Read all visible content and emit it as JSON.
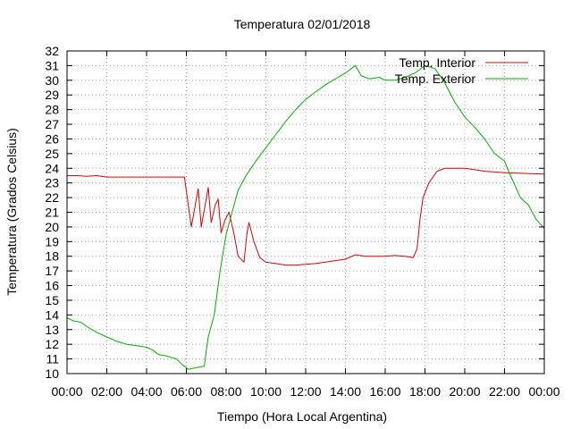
{
  "chart_data": {
    "type": "line",
    "title": "Temperatura 02/01/2018",
    "xlabel": "Tiempo (Hora Local Argentina)",
    "ylabel": "Temperatura (Grados Celsius)",
    "xlim": [
      0,
      24
    ],
    "ylim": [
      10,
      32
    ],
    "xticks": [
      0,
      2,
      4,
      6,
      8,
      10,
      12,
      14,
      16,
      18,
      20,
      22,
      24
    ],
    "xtick_labels": [
      "00:00",
      "02:00",
      "04:00",
      "06:00",
      "08:00",
      "10:00",
      "12:00",
      "14:00",
      "16:00",
      "18:00",
      "20:00",
      "22:00",
      "00:00"
    ],
    "yticks": [
      10,
      11,
      12,
      13,
      14,
      15,
      16,
      17,
      18,
      19,
      20,
      21,
      22,
      23,
      24,
      25,
      26,
      27,
      28,
      29,
      30,
      31,
      32
    ],
    "grid": true,
    "legend_position": "top-right",
    "series": [
      {
        "name": "Temp. Interior",
        "color": "#e00000",
        "points": [
          [
            0,
            23.5
          ],
          [
            0.5,
            23.5
          ],
          [
            1,
            23.45
          ],
          [
            1.5,
            23.5
          ],
          [
            2,
            23.4
          ],
          [
            3,
            23.4
          ],
          [
            4,
            23.4
          ],
          [
            5,
            23.4
          ],
          [
            5.9,
            23.4
          ],
          [
            6.1,
            21.5
          ],
          [
            6.25,
            20.0
          ],
          [
            6.45,
            21.5
          ],
          [
            6.6,
            22.6
          ],
          [
            6.75,
            20.0
          ],
          [
            6.95,
            21.5
          ],
          [
            7.1,
            22.7
          ],
          [
            7.25,
            20.3
          ],
          [
            7.45,
            21.5
          ],
          [
            7.6,
            21.9
          ],
          [
            7.75,
            19.6
          ],
          [
            7.95,
            20.5
          ],
          [
            8.15,
            21.0
          ],
          [
            8.4,
            19.5
          ],
          [
            8.6,
            18.0
          ],
          [
            8.9,
            17.6
          ],
          [
            9.05,
            19.6
          ],
          [
            9.15,
            20.3
          ],
          [
            9.4,
            19.0
          ],
          [
            9.7,
            17.9
          ],
          [
            10,
            17.6
          ],
          [
            10.5,
            17.5
          ],
          [
            11,
            17.4
          ],
          [
            11.5,
            17.4
          ],
          [
            12,
            17.45
          ],
          [
            12.5,
            17.5
          ],
          [
            13,
            17.6
          ],
          [
            13.5,
            17.7
          ],
          [
            14,
            17.8
          ],
          [
            14.5,
            18.1
          ],
          [
            15,
            18.0
          ],
          [
            15.5,
            18.0
          ],
          [
            16,
            18.0
          ],
          [
            16.5,
            18.05
          ],
          [
            17,
            18.0
          ],
          [
            17.4,
            17.9
          ],
          [
            17.6,
            18.5
          ],
          [
            17.75,
            20.5
          ],
          [
            17.9,
            22.0
          ],
          [
            18.2,
            23.0
          ],
          [
            18.6,
            23.8
          ],
          [
            19,
            24.0
          ],
          [
            19.5,
            24.0
          ],
          [
            20,
            24.0
          ],
          [
            20.5,
            23.9
          ],
          [
            21,
            23.8
          ],
          [
            21.5,
            23.75
          ],
          [
            22,
            23.7
          ],
          [
            23,
            23.65
          ],
          [
            24,
            23.6
          ]
        ]
      },
      {
        "name": "Temp. Exterior",
        "color": "#00b000",
        "points": [
          [
            0,
            13.8
          ],
          [
            0.3,
            13.6
          ],
          [
            0.7,
            13.5
          ],
          [
            1,
            13.2
          ],
          [
            1.5,
            12.8
          ],
          [
            2,
            12.5
          ],
          [
            2.5,
            12.2
          ],
          [
            3,
            12.0
          ],
          [
            3.5,
            11.9
          ],
          [
            4,
            11.8
          ],
          [
            4.3,
            11.6
          ],
          [
            4.6,
            11.3
          ],
          [
            5,
            11.2
          ],
          [
            5.5,
            11.0
          ],
          [
            5.8,
            10.6
          ],
          [
            6.1,
            10.3
          ],
          [
            6.5,
            10.4
          ],
          [
            6.9,
            10.5
          ],
          [
            7.1,
            12.5
          ],
          [
            7.4,
            14.0
          ],
          [
            7.7,
            17.0
          ],
          [
            8,
            19.5
          ],
          [
            8.3,
            21.0
          ],
          [
            8.6,
            22.5
          ],
          [
            9,
            23.5
          ],
          [
            9.5,
            24.5
          ],
          [
            10,
            25.4
          ],
          [
            10.5,
            26.3
          ],
          [
            11,
            27.2
          ],
          [
            11.5,
            28.0
          ],
          [
            12,
            28.7
          ],
          [
            12.5,
            29.2
          ],
          [
            13,
            29.7
          ],
          [
            13.5,
            30.1
          ],
          [
            14,
            30.5
          ],
          [
            14.3,
            30.8
          ],
          [
            14.5,
            31.0
          ],
          [
            14.8,
            30.3
          ],
          [
            15.2,
            30.1
          ],
          [
            15.7,
            30.2
          ],
          [
            16,
            30.0
          ],
          [
            16.5,
            30.0
          ],
          [
            17,
            30.2
          ],
          [
            17.5,
            30.5
          ],
          [
            18,
            31.0
          ],
          [
            18.5,
            30.8
          ],
          [
            19,
            29.8
          ],
          [
            19.5,
            28.5
          ],
          [
            20,
            27.5
          ],
          [
            20.5,
            26.8
          ],
          [
            21,
            26.0
          ],
          [
            21.5,
            25.0
          ],
          [
            22,
            24.5
          ],
          [
            22.3,
            23.5
          ],
          [
            22.8,
            22.0
          ],
          [
            23.2,
            21.5
          ],
          [
            23.6,
            20.5
          ],
          [
            24,
            19.9
          ]
        ]
      }
    ]
  }
}
